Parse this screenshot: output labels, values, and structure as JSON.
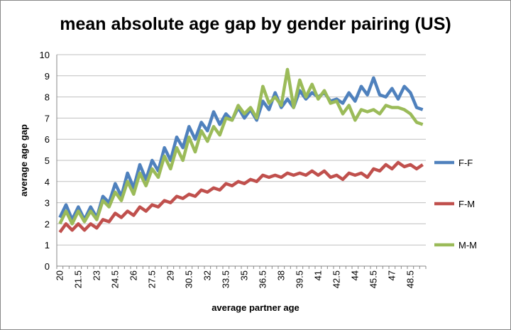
{
  "chart_data": {
    "type": "line",
    "title": "mean absolute age gap by gender pairing (US)",
    "x_label": "average partner age",
    "y_label": "average age gap",
    "categories": [
      "20",
      null,
      null,
      "21.5",
      null,
      null,
      "23",
      null,
      null,
      "24.5",
      null,
      null,
      "26",
      null,
      null,
      "27.5",
      null,
      null,
      "29",
      null,
      null,
      "30.5",
      null,
      null,
      "32",
      null,
      null,
      "33.5",
      null,
      null,
      "35",
      null,
      null,
      "36.5",
      null,
      null,
      "38",
      null,
      null,
      "39.5",
      null,
      null,
      "41",
      null,
      null,
      "42.5",
      null,
      null,
      "44",
      null,
      null,
      "45.5",
      null,
      null,
      "47",
      null,
      null,
      "48.5",
      null,
      null
    ],
    "series": [
      {
        "name": "F-F",
        "color": "#4f81bd",
        "values": [
          2.3,
          2.9,
          2.2,
          2.8,
          2.2,
          2.8,
          2.3,
          3.3,
          3.0,
          3.9,
          3.3,
          4.4,
          3.7,
          4.8,
          4.1,
          5.0,
          4.5,
          5.6,
          5.0,
          6.1,
          5.6,
          6.6,
          6.0,
          6.8,
          6.4,
          7.3,
          6.7,
          7.2,
          6.9,
          7.5,
          7.0,
          7.4,
          6.9,
          7.8,
          7.4,
          8.2,
          7.5,
          7.9,
          7.5,
          8.3,
          7.9,
          8.2,
          8.0,
          8.2,
          7.8,
          7.9,
          7.7,
          8.2,
          7.8,
          8.5,
          8.1,
          8.9,
          8.1,
          8.0,
          8.4,
          7.9,
          8.5,
          8.2,
          7.5,
          7.4
        ]
      },
      {
        "name": "F-M",
        "color": "#c0504d",
        "values": [
          1.6,
          2.0,
          1.7,
          2.0,
          1.7,
          2.0,
          1.8,
          2.2,
          2.1,
          2.5,
          2.3,
          2.6,
          2.4,
          2.8,
          2.6,
          2.9,
          2.8,
          3.1,
          3.0,
          3.3,
          3.2,
          3.4,
          3.3,
          3.6,
          3.5,
          3.7,
          3.6,
          3.9,
          3.8,
          4.0,
          3.9,
          4.1,
          4.0,
          4.3,
          4.2,
          4.3,
          4.2,
          4.4,
          4.3,
          4.4,
          4.3,
          4.5,
          4.3,
          4.5,
          4.2,
          4.3,
          4.1,
          4.4,
          4.3,
          4.4,
          4.2,
          4.6,
          4.5,
          4.8,
          4.6,
          4.9,
          4.7,
          4.8,
          4.6,
          4.8
        ]
      },
      {
        "name": "M-M",
        "color": "#9bbb59",
        "values": [
          2.0,
          2.6,
          2.0,
          2.6,
          2.1,
          2.6,
          2.2,
          3.1,
          2.8,
          3.5,
          3.1,
          4.0,
          3.4,
          4.4,
          3.8,
          4.6,
          4.2,
          5.2,
          4.6,
          5.6,
          5.0,
          6.1,
          5.4,
          6.4,
          5.9,
          6.6,
          6.2,
          7.0,
          6.9,
          7.6,
          7.2,
          7.5,
          7.0,
          8.5,
          7.7,
          8.0,
          7.6,
          9.3,
          7.5,
          8.8,
          8.0,
          8.6,
          7.9,
          8.3,
          7.7,
          7.8,
          7.2,
          7.6,
          6.9,
          7.4,
          7.3,
          7.4,
          7.2,
          7.6,
          7.5,
          7.5,
          7.4,
          7.2,
          6.8,
          6.7
        ]
      }
    ],
    "ylim": [
      0,
      10
    ],
    "yticks": [
      0,
      1,
      2,
      3,
      4,
      5,
      6,
      7,
      8,
      9,
      10
    ],
    "grid": true,
    "legend": "right"
  }
}
